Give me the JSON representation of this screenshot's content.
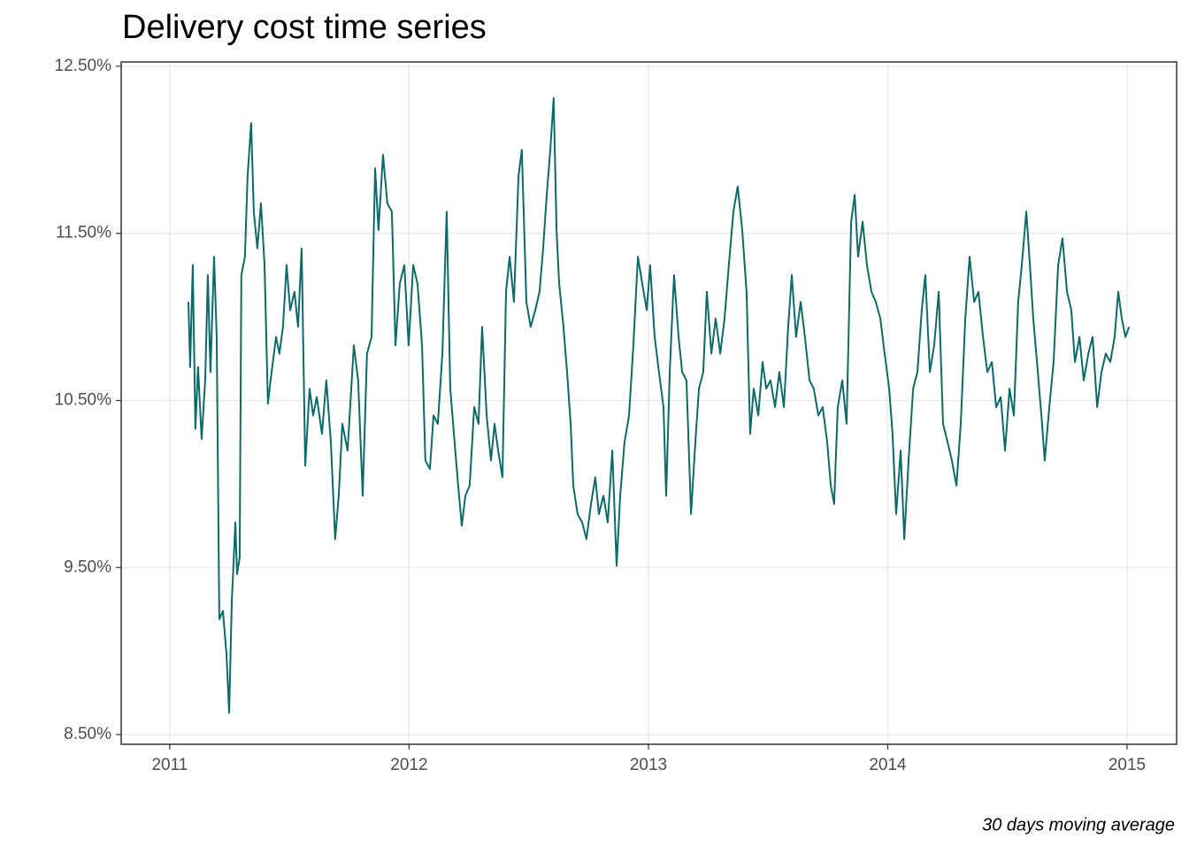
{
  "chart_data": {
    "type": "line",
    "title": "Delivery cost time series",
    "caption": "30 days moving average",
    "x": [
      2011.078,
      2011.085,
      2011.096,
      2011.107,
      2011.118,
      2011.133,
      2011.148,
      2011.159,
      2011.17,
      2011.185,
      2011.196,
      2011.207,
      2011.222,
      2011.237,
      2011.248,
      2011.259,
      2011.274,
      2011.281,
      2011.292,
      2011.299,
      2011.314,
      2011.325,
      2011.34,
      2011.351,
      2011.366,
      2011.381,
      2011.396,
      2011.41,
      2011.421,
      2011.444,
      2011.458,
      2011.473,
      2011.488,
      2011.503,
      2011.521,
      2011.536,
      2011.551,
      2011.566,
      2011.584,
      2011.599,
      2011.614,
      2011.636,
      2011.654,
      2011.673,
      2011.691,
      2011.706,
      2011.721,
      2011.743,
      2011.769,
      2011.787,
      2011.806,
      2011.824,
      2011.843,
      2011.858,
      2011.872,
      2011.891,
      2011.909,
      2011.928,
      2011.943,
      2011.961,
      2011.98,
      2011.998,
      2012.017,
      2012.035,
      2012.054,
      2012.068,
      2012.087,
      2012.102,
      2012.12,
      2012.139,
      2012.157,
      2012.172,
      2012.19,
      2012.205,
      2012.22,
      2012.235,
      2012.253,
      2012.272,
      2012.29,
      2012.305,
      2012.324,
      2012.342,
      2012.357,
      2012.372,
      2012.39,
      2012.405,
      2012.42,
      2012.438,
      2012.457,
      2012.471,
      2012.49,
      2012.508,
      2012.527,
      2012.545,
      2012.56,
      2012.575,
      2012.59,
      2012.604,
      2012.616,
      2012.627,
      2012.645,
      2012.66,
      2012.675,
      2012.686,
      2012.704,
      2012.723,
      2012.741,
      2012.76,
      2012.778,
      2012.793,
      2012.812,
      2012.83,
      2012.849,
      2012.867,
      2012.882,
      2012.9,
      2012.919,
      2012.937,
      2012.956,
      2012.974,
      2012.993,
      2013.007,
      2013.026,
      2013.044,
      2013.063,
      2013.074,
      2013.089,
      2013.107,
      2013.126,
      2013.141,
      2013.159,
      2013.178,
      2013.196,
      2013.211,
      2013.229,
      2013.244,
      2013.263,
      2013.281,
      2013.3,
      2013.318,
      2013.336,
      2013.355,
      2013.373,
      2013.392,
      2013.41,
      2013.425,
      2013.44,
      2013.459,
      2013.477,
      2013.492,
      2013.51,
      2013.529,
      2013.547,
      2013.566,
      2013.584,
      2013.599,
      2013.617,
      2013.636,
      2013.654,
      2013.673,
      2013.691,
      2013.71,
      2013.728,
      2013.747,
      2013.762,
      2013.776,
      2013.791,
      2013.81,
      2013.828,
      2013.847,
      2013.862,
      2013.876,
      2013.895,
      2013.913,
      2013.932,
      2013.95,
      2013.969,
      2013.987,
      2014.006,
      2014.02,
      2014.035,
      2014.054,
      2014.069,
      2014.087,
      2014.106,
      2014.124,
      2014.142,
      2014.157,
      2014.176,
      2014.194,
      2014.213,
      2014.231,
      2014.25,
      2014.268,
      2014.287,
      2014.305,
      2014.324,
      2014.342,
      2014.361,
      2014.379,
      2014.398,
      2014.416,
      2014.435,
      2014.453,
      2014.472,
      2014.49,
      2014.509,
      2014.527,
      2014.545,
      2014.56,
      2014.579,
      2014.594,
      2014.608,
      2014.627,
      2014.642,
      2014.656,
      2014.675,
      2014.693,
      2014.712,
      2014.73,
      2014.749,
      2014.767,
      2014.782,
      2014.801,
      2014.819,
      2014.838,
      2014.856,
      2014.875,
      2014.893,
      2014.911,
      2014.93,
      2014.948,
      2014.963,
      2014.978,
      2014.993,
      2015.008
    ],
    "series": [
      {
        "color": "#0b6b6b",
        "values": [
          11.09,
          10.7,
          11.31,
          10.33,
          10.7,
          10.27,
          10.62,
          11.25,
          10.67,
          11.36,
          10.88,
          9.19,
          9.24,
          8.98,
          8.63,
          9.29,
          9.77,
          9.46,
          9.56,
          11.25,
          11.36,
          11.84,
          12.16,
          11.63,
          11.41,
          11.68,
          11.31,
          10.48,
          10.62,
          10.88,
          10.78,
          10.94,
          11.31,
          11.04,
          11.15,
          10.94,
          11.41,
          10.11,
          10.57,
          10.41,
          10.52,
          10.3,
          10.62,
          10.25,
          9.67,
          9.93,
          10.36,
          10.2,
          10.83,
          10.62,
          9.93,
          10.78,
          10.88,
          11.89,
          11.52,
          11.97,
          11.68,
          11.63,
          10.83,
          11.2,
          11.31,
          10.83,
          11.31,
          11.2,
          10.83,
          10.14,
          10.09,
          10.41,
          10.36,
          10.78,
          11.63,
          10.57,
          10.25,
          9.99,
          9.75,
          9.93,
          9.99,
          10.46,
          10.36,
          10.94,
          10.41,
          10.14,
          10.36,
          10.2,
          10.04,
          11.15,
          11.36,
          11.09,
          11.84,
          12.0,
          11.09,
          10.94,
          11.04,
          11.15,
          11.41,
          11.73,
          12.0,
          12.31,
          11.52,
          11.2,
          10.94,
          10.67,
          10.36,
          9.99,
          9.82,
          9.77,
          9.67,
          9.88,
          10.04,
          9.82,
          9.93,
          9.77,
          10.2,
          9.51,
          9.93,
          10.25,
          10.41,
          10.83,
          11.36,
          11.2,
          11.04,
          11.31,
          10.88,
          10.67,
          10.46,
          9.93,
          10.67,
          11.25,
          10.88,
          10.67,
          10.62,
          9.82,
          10.25,
          10.57,
          10.67,
          11.15,
          10.78,
          10.99,
          10.78,
          10.99,
          11.31,
          11.63,
          11.78,
          11.52,
          11.15,
          10.3,
          10.57,
          10.41,
          10.73,
          10.57,
          10.62,
          10.46,
          10.67,
          10.46,
          10.94,
          11.25,
          10.88,
          11.09,
          10.88,
          10.62,
          10.57,
          10.41,
          10.46,
          10.25,
          9.99,
          9.88,
          10.46,
          10.62,
          10.36,
          11.57,
          11.73,
          11.36,
          11.57,
          11.31,
          11.15,
          11.09,
          10.99,
          10.78,
          10.57,
          10.3,
          9.82,
          10.2,
          9.67,
          10.14,
          10.57,
          10.67,
          11.04,
          11.25,
          10.67,
          10.83,
          11.15,
          10.36,
          10.25,
          10.14,
          9.99,
          10.36,
          10.99,
          11.36,
          11.09,
          11.15,
          10.88,
          10.67,
          10.73,
          10.46,
          10.52,
          10.2,
          10.57,
          10.41,
          11.09,
          11.31,
          11.63,
          11.31,
          10.99,
          10.67,
          10.41,
          10.14,
          10.46,
          10.73,
          11.31,
          11.47,
          11.15,
          11.04,
          10.73,
          10.88,
          10.62,
          10.78,
          10.88,
          10.46,
          10.67,
          10.78,
          10.73,
          10.88,
          11.15,
          10.99,
          10.88,
          10.94
        ]
      }
    ],
    "xlim": [
      2010.797,
      2015.207
    ],
    "xticks": [
      2011,
      2012,
      2013,
      2014,
      2015
    ],
    "ylim": [
      8.442,
      12.526
    ],
    "yticks": [
      {
        "value": 8.5,
        "label": "8.50%"
      },
      {
        "value": 9.5,
        "label": "9.50%"
      },
      {
        "value": 10.5,
        "label": "10.50%"
      },
      {
        "value": 11.5,
        "label": "11.50%"
      },
      {
        "value": 12.5,
        "label": "12.50%"
      }
    ],
    "grid": true
  }
}
